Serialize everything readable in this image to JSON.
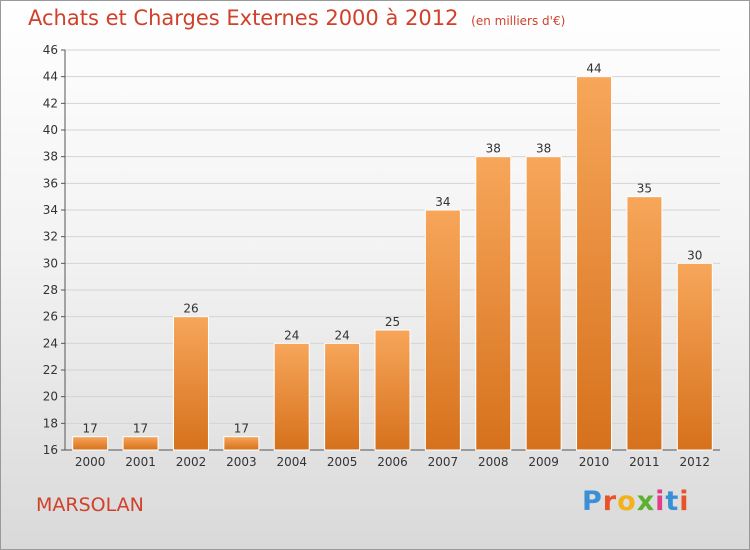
{
  "title": "Achats et Charges Externes 2000 à 2012",
  "subtitle": "(en milliers d'€)",
  "place": "MARSOLAN",
  "logo": {
    "letters": [
      "P",
      "r",
      "o",
      "x",
      "i",
      "t",
      "i"
    ],
    "colors": [
      "#3a8fd6",
      "#e8542a",
      "#f2b21b",
      "#5db130",
      "#e23c8a",
      "#3a8fd6",
      "#e8542a"
    ]
  },
  "colors": {
    "title": "#d0402a",
    "bar_light": "#f7a65a",
    "bar_dark": "#d6711c",
    "grid": "#d4d4d4"
  },
  "chart_data": {
    "type": "bar",
    "title": "Achats et Charges Externes 2000 à 2012",
    "subtitle": "(en milliers d'€)",
    "categories": [
      "2000",
      "2001",
      "2002",
      "2003",
      "2004",
      "2005",
      "2006",
      "2007",
      "2008",
      "2009",
      "2010",
      "2011",
      "2012"
    ],
    "values": [
      17,
      17,
      26,
      17,
      24,
      24,
      25,
      34,
      38,
      38,
      44,
      35,
      30
    ],
    "ylim": [
      16,
      46
    ],
    "yticks": [
      16,
      18,
      20,
      22,
      24,
      26,
      28,
      30,
      32,
      34,
      36,
      38,
      40,
      42,
      44,
      46
    ],
    "xlabel": "",
    "ylabel": "",
    "grid": true,
    "legend": "none"
  }
}
